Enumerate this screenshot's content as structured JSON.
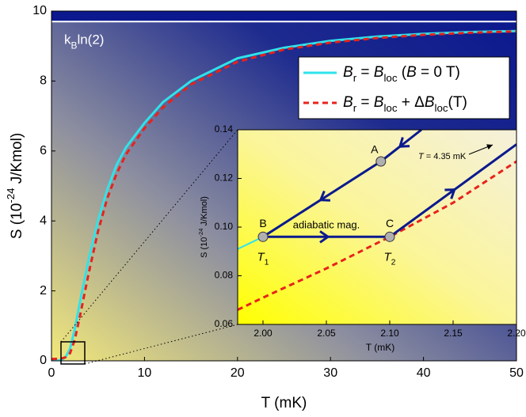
{
  "chart_data": [
    {
      "type": "line",
      "xlabel": "T (mK)",
      "ylabel": [
        {
          "t": "S (10"
        },
        {
          "t": "-24",
          "sup": true
        },
        {
          "t": " J/Kmol)"
        }
      ],
      "xlim": [
        0,
        50
      ],
      "xticks": [
        0,
        10,
        20,
        30,
        40,
        50
      ],
      "ylim": [
        0,
        10
      ],
      "yticks": [
        0,
        2,
        4,
        6,
        8,
        10
      ],
      "reference_line": {
        "value": 9.7,
        "label": [
          {
            "t": "k"
          },
          {
            "t": "B",
            "sub": true
          },
          {
            "t": "ln(2)"
          }
        ]
      },
      "legend": "upper right",
      "series": [
        {
          "name": [
            {
              "t": "B",
              "it": true
            },
            {
              "t": "r",
              "sub": true
            },
            {
              "t": " = "
            },
            {
              "t": "B",
              "it": true
            },
            {
              "t": "loc",
              "sub": true
            },
            {
              "t": " ("
            },
            {
              "t": "B",
              "it": true
            },
            {
              "t": " = 0 T)"
            }
          ],
          "color": "#2fe3ea",
          "dash": false,
          "x": [
            0,
            1,
            1.5,
            2,
            2.5,
            3,
            4,
            5,
            6,
            7,
            8,
            10,
            12,
            15,
            20,
            25,
            30,
            35,
            40,
            45,
            50
          ],
          "values": [
            0,
            0.02,
            0.1,
            0.35,
            0.9,
            1.6,
            2.9,
            4.0,
            4.9,
            5.6,
            6.1,
            6.8,
            7.4,
            8.0,
            8.65,
            8.95,
            9.15,
            9.27,
            9.35,
            9.4,
            9.43
          ]
        },
        {
          "name": [
            {
              "t": "B",
              "it": true
            },
            {
              "t": "r",
              "sub": true
            },
            {
              "t": " = "
            },
            {
              "t": "B",
              "it": true
            },
            {
              "t": "loc",
              "sub": true
            },
            {
              "t": " + Δ"
            },
            {
              "t": "B",
              "it": true
            },
            {
              "t": "loc",
              "sub": true
            },
            {
              "t": "(T)"
            }
          ],
          "color": "#e8221c",
          "dash": true,
          "x": [
            0,
            1,
            1.5,
            2,
            2.5,
            3,
            4,
            5,
            6,
            7,
            8,
            10,
            12,
            15,
            20,
            25,
            30,
            35,
            40,
            45,
            50
          ],
          "values": [
            0.05,
            0.06,
            0.1,
            0.22,
            0.6,
            1.2,
            2.5,
            3.7,
            4.65,
            5.35,
            5.9,
            6.65,
            7.25,
            7.9,
            8.55,
            8.9,
            9.1,
            9.23,
            9.32,
            9.38,
            9.42
          ]
        }
      ]
    },
    {
      "type": "line",
      "xlabel": "T (mK)",
      "ylabel": [
        {
          "t": "S (10"
        },
        {
          "t": "-24",
          "sup": true
        },
        {
          "t": " J/Kmol)"
        }
      ],
      "xlim": [
        1.98,
        2.2
      ],
      "xticks": [
        {
          "value": 2,
          "label": "2.00"
        },
        2.05,
        {
          "value": 2.1,
          "label": "2.10"
        },
        2.15,
        {
          "value": 2.2,
          "label": "2.20"
        }
      ],
      "ylim": [
        0.06,
        0.14
      ],
      "yticks": [
        0.06,
        0.08,
        {
          "value": 0.1,
          "label": "0.10"
        },
        0.12,
        0.14
      ],
      "series": [
        {
          "color": "#2fe3ea",
          "dash": false,
          "width": 2,
          "x": [
            1.98,
            2.0
          ],
          "values": [
            0.091,
            0.096
          ]
        },
        {
          "color": "#e8221c",
          "dash": true,
          "width": 3,
          "x": [
            1.98,
            2.0,
            2.05,
            2.1,
            2.15,
            2.2
          ],
          "values": [
            0.066,
            0.071,
            0.083,
            0.096,
            0.11,
            0.127
          ]
        },
        {
          "color": "#0b1a8e",
          "dash": false,
          "width": 3,
          "arrows": true,
          "x": [
            2.0,
            2.1
          ],
          "values": [
            0.096,
            0.096
          ]
        },
        {
          "color": "#0b1a8e",
          "dash": false,
          "width": 3,
          "arrows": true,
          "x": [
            2.1,
            2.2
          ],
          "values": [
            0.096,
            0.134
          ]
        },
        {
          "color": "#0b1a8e",
          "dash": false,
          "width": 3,
          "arrows": true,
          "x": [
            2.125,
            2.093,
            2.0
          ],
          "values": [
            0.14,
            0.127,
            0.096
          ]
        }
      ],
      "points": [
        {
          "label": "A",
          "x": 2.093,
          "y": 0.127
        },
        {
          "label": "B",
          "x": 2.0,
          "y": 0.096
        },
        {
          "label": "C",
          "x": 2.1,
          "y": 0.096
        }
      ],
      "annotations": [
        [
          {
            "t": "adiabatic mag."
          }
        ],
        [
          {
            "t": "T",
            "it": true
          },
          {
            "t": "1",
            "sub": true
          }
        ],
        [
          {
            "t": "T",
            "it": true
          },
          {
            "t": "2",
            "sub": true
          }
        ],
        [
          {
            "t": "T",
            "it": true
          },
          {
            "t": " = 4.35 mK"
          }
        ]
      ]
    }
  ]
}
